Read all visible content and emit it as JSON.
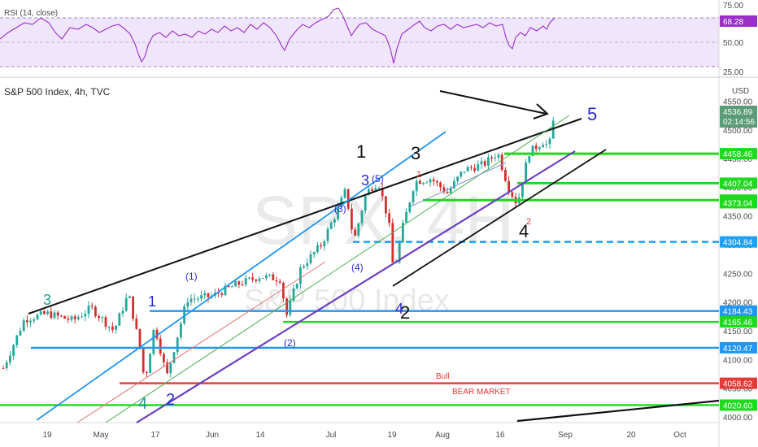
{
  "rsi": {
    "title": "RSI (14, close)",
    "value": 68.28,
    "value_label": "68.28",
    "levels": [
      "75.00",
      "50.00",
      "25.00"
    ],
    "band_color": "#f0e6fb",
    "line_color": "#9b2ec9"
  },
  "header": {
    "title": "S&P 500 Index, 4h, TVC",
    "currency": "USD"
  },
  "watermark": {
    "symbol": "SPX, 4H",
    "name": "S&P 500 Index"
  },
  "price": {
    "last_label": "4536.89",
    "countdown": "02:14:56",
    "last_color": "#5a9b78"
  },
  "colors": {
    "green": "#1fd91f",
    "blue": "#2196f3",
    "red": "#e53935",
    "purple": "#6a3fc4",
    "black": "#111111",
    "teal": "#1e9e8a",
    "navy": "#2a2ad0"
  },
  "chart_data": {
    "type": "candlestick",
    "title": "S&P 500 Index, 4h, TVC",
    "y_axis_ticks": [
      "4550.00",
      "4500.00",
      "4450.00",
      "4400.00",
      "4350.00",
      "4300.00",
      "4250.00",
      "4200.00",
      "4150.00",
      "4100.00",
      "4050.00",
      "4000.00"
    ],
    "x_axis_ticks": [
      "19",
      "May",
      "17",
      "Jun",
      "14",
      "Jul",
      "19",
      "Aug",
      "16",
      "Sep",
      "20",
      "Oct"
    ],
    "price_tags": [
      {
        "label": "4536.89",
        "value": 4536.89,
        "color": "#5a9b78"
      },
      {
        "label": "4458.46",
        "value": 4458.46,
        "color": "#1fd91f"
      },
      {
        "label": "4407.04",
        "value": 4407.04,
        "color": "#1fd91f"
      },
      {
        "label": "4377.59",
        "value": 4377.59,
        "color": "#1fd91f"
      },
      {
        "label": "4373.04",
        "value": 4373.04,
        "color": "#1fd91f"
      },
      {
        "label": "4304.84",
        "value": 4304.84,
        "color": "#1da1f2"
      },
      {
        "label": "4184.43",
        "value": 4184.43,
        "color": "#2196f3"
      },
      {
        "label": "4165.46",
        "value": 4165.46,
        "color": "#1fd91f"
      },
      {
        "label": "4120.47",
        "value": 4120.47,
        "color": "#2196f3"
      },
      {
        "label": "4058.62",
        "value": 4058.62,
        "color": "#e53935"
      },
      {
        "label": "4020.60",
        "value": 4020.6,
        "color": "#1fd91f"
      }
    ],
    "horizontal_levels": [
      {
        "value": 4458.46,
        "color": "#1fd91f"
      },
      {
        "value": 4407.04,
        "color": "#1fd91f"
      },
      {
        "value": 4377.59,
        "color": "#1fd91f"
      },
      {
        "value": 4304.84,
        "color": "#1da1f2",
        "dashed": true
      },
      {
        "value": 4184.43,
        "color": "#2196f3"
      },
      {
        "value": 4165.46,
        "color": "#1fd91f"
      },
      {
        "value": 4120.47,
        "color": "#2196f3"
      },
      {
        "value": 4058.62,
        "color": "#e53935"
      },
      {
        "value": 4020.6,
        "color": "#1fd91f"
      }
    ],
    "annotations": [
      "Bull",
      "BEAR MARKET"
    ],
    "wave_labels": [
      "3",
      "1",
      "(1)",
      "4",
      "2",
      "(2)",
      "(3)",
      "(4)",
      "3",
      "(5)",
      "1",
      "3",
      "4",
      "2",
      "4",
      "5",
      "1",
      "2"
    ],
    "grid": false
  }
}
